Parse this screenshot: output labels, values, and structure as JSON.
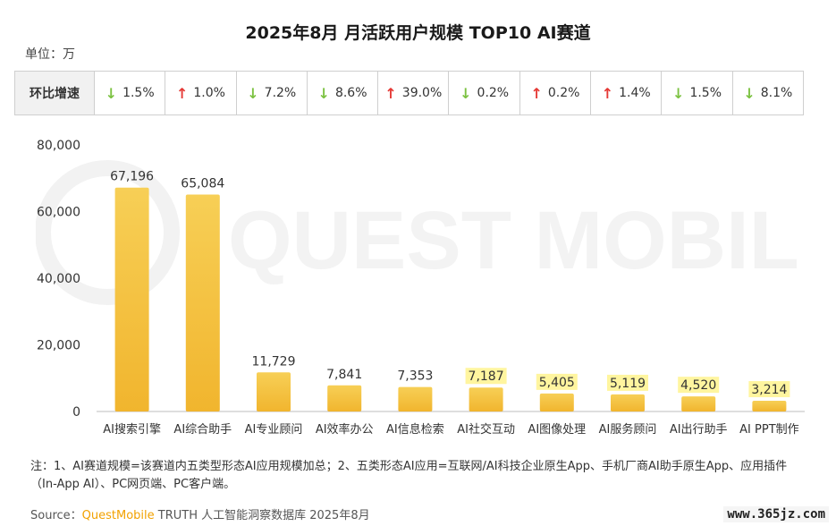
{
  "title": "2025年8月 月活跃用户规模 TOP10 AI赛道",
  "unit_label": "单位：万",
  "growth": {
    "header": "环比增速",
    "cells": [
      {
        "dir": "down",
        "value": "1.5%"
      },
      {
        "dir": "up",
        "value": "1.0%"
      },
      {
        "dir": "down",
        "value": "7.2%"
      },
      {
        "dir": "down",
        "value": "8.6%"
      },
      {
        "dir": "up",
        "value": "39.0%"
      },
      {
        "dir": "down",
        "value": "0.2%"
      },
      {
        "dir": "up",
        "value": "0.2%"
      },
      {
        "dir": "up",
        "value": "1.4%"
      },
      {
        "dir": "down",
        "value": "1.5%"
      },
      {
        "dir": "down",
        "value": "8.1%"
      }
    ]
  },
  "watermark": "QUEST MOBILE",
  "chart_data": {
    "type": "bar",
    "categories": [
      "AI搜索引擎",
      "AI综合助手",
      "AI专业顾问",
      "AI效率办公",
      "AI信息检索",
      "AI社交互动",
      "AI图像处理",
      "AI服务顾问",
      "AI出行助手",
      "AI PPT制作"
    ],
    "values": [
      67196,
      65084,
      11729,
      7841,
      7353,
      7187,
      5405,
      5119,
      4520,
      3214
    ],
    "value_labels": [
      "67,196",
      "65,084",
      "11,729",
      "7,841",
      "7,353",
      "7,187",
      "5,405",
      "5,119",
      "4,520",
      "3,214"
    ],
    "ylim": [
      0,
      80000
    ],
    "yticks": [
      0,
      20000,
      40000,
      60000,
      80000
    ],
    "ytick_labels": [
      "0",
      "20,000",
      "40,000",
      "60,000",
      "80,000"
    ],
    "colors": {
      "bar_top": "#f7cf56",
      "bar_bottom": "#f1b52e",
      "highlight": "#fff176"
    },
    "grid": false
  },
  "note": "注：1、AI赛道规模=该赛道内五类型形态AI应用规模加总；2、五类形态AI应用=互联网/AI科技企业原生App、手机厂商AI助手原生App、应用插件（In-App AI）、PC网页端、PC客户端。",
  "source": {
    "prefix": "Source：",
    "brand": "QuestMobile",
    "rest": " TRUTH 人工智能洞察数据库 2025年8月"
  },
  "site": "www.365jz.com"
}
